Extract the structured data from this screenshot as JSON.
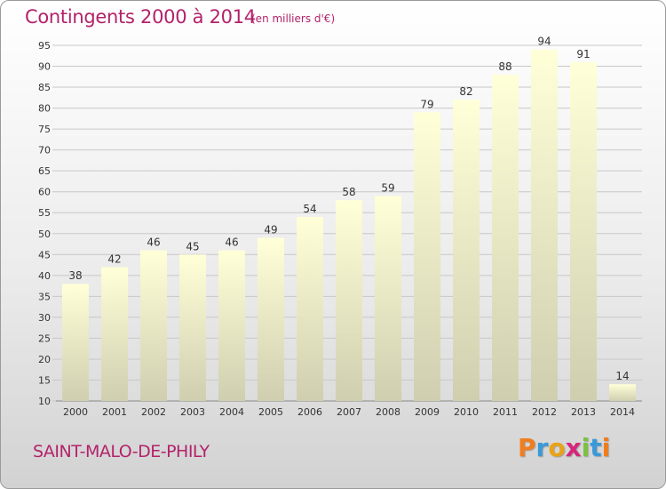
{
  "header": {
    "title": "Contingents 2000 à 2014",
    "subtitle": "(en milliers d'€)"
  },
  "footer": {
    "commune": "SAINT-MALO-DE-PHILY",
    "logo_letters": [
      "P",
      "r",
      "o",
      "x",
      "i",
      "t",
      "i"
    ],
    "logo_colors": [
      "#f07d1e",
      "#3a9ad9",
      "#e8a317",
      "#d6267a",
      "#7cc142",
      "#3a9ad9",
      "#f07d1e"
    ]
  },
  "colors": {
    "title": "#b3226a",
    "bar_top": "#ffffd8",
    "bar_bottom": "#cfcfb0",
    "grid": "#c8c8c8",
    "axis_text": "#333333"
  },
  "chart_data": {
    "type": "bar",
    "title": "Contingents 2000 à 2014",
    "subtitle": "(en milliers d'€)",
    "categories": [
      "2000",
      "2001",
      "2002",
      "2003",
      "2004",
      "2005",
      "2006",
      "2007",
      "2008",
      "2009",
      "2010",
      "2011",
      "2012",
      "2013",
      "2014"
    ],
    "values": [
      38,
      42,
      46,
      45,
      46,
      49,
      54,
      58,
      59,
      79,
      82,
      88,
      94,
      91,
      14
    ],
    "ylim": [
      10,
      95
    ],
    "yticks": [
      10,
      15,
      20,
      25,
      30,
      35,
      40,
      45,
      50,
      55,
      60,
      65,
      70,
      75,
      80,
      85,
      90,
      95
    ],
    "grid": true,
    "xlabel": "",
    "ylabel": ""
  }
}
